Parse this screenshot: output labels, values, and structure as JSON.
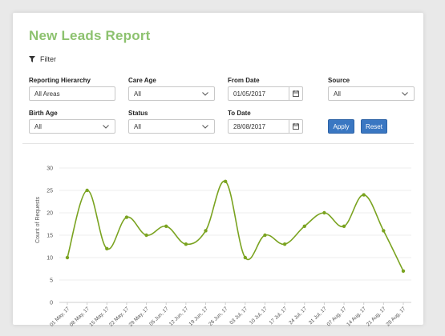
{
  "header": {
    "title": "New Leads Report"
  },
  "filter": {
    "label": "Filter"
  },
  "form": {
    "reporting_hierarchy": {
      "label": "Reporting Hierarchy",
      "value": "All Areas"
    },
    "care_age": {
      "label": "Care Age",
      "value": "All"
    },
    "from_date": {
      "label": "From Date",
      "value": "01/05/2017"
    },
    "source": {
      "label": "Source",
      "value": "All"
    },
    "birth_age": {
      "label": "Birth Age",
      "value": "All"
    },
    "status": {
      "label": "Status",
      "value": "All"
    },
    "to_date": {
      "label": "To Date",
      "value": "28/08/2017"
    },
    "apply_label": "Apply",
    "reset_label": "Reset"
  },
  "colors": {
    "title": "#8dc26f",
    "line": "#7aa320",
    "button": "#3a77c2"
  },
  "chart_data": {
    "type": "line",
    "ylabel": "Count of Requests",
    "xlabel": "",
    "ylim": [
      0,
      30
    ],
    "yticks": [
      0,
      5,
      10,
      15,
      20,
      25,
      30
    ],
    "categories": [
      "01 May, 17",
      "08 May, 17",
      "15 May, 17",
      "22 May, 17",
      "29 May, 17",
      "05 Jun, 17",
      "12 Jun, 17",
      "19 Jun, 17",
      "26 Jun, 17",
      "03 Jul, 17",
      "10 Jul, 17",
      "17 Jul, 17",
      "24 Jul, 17",
      "31 Jul, 17",
      "07 Aug, 17",
      "14 Aug, 17",
      "21 Aug, 17",
      "28 Aug, 17"
    ],
    "values": [
      10,
      25,
      12,
      19,
      15,
      17,
      13,
      16,
      27,
      10,
      15,
      13,
      17,
      20,
      17,
      24,
      16,
      7
    ],
    "grid": true,
    "smooth": true
  }
}
